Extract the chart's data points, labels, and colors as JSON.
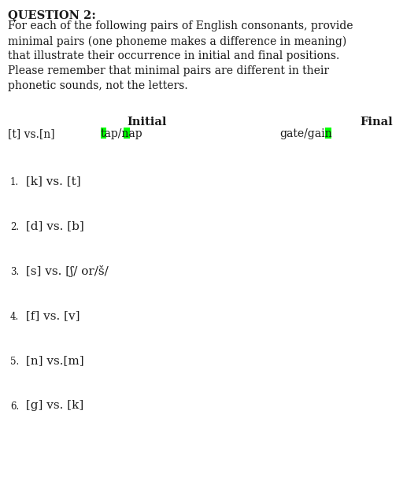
{
  "title": "QUESTION 2:",
  "intro_text": "For each of the following pairs of English consonants, provide\nminimal pairs (one phoneme makes a difference in meaning)\nthat illustrate their occurrence in initial and final positions.\nPlease remember that minimal pairs are different in their\nphonetic sounds, not the letters.",
  "header_initial": "Initial",
  "header_final": "Final",
  "example_label": "[t] vs.[n]",
  "example_initial": "tap/nap",
  "example_final": "gate/gain",
  "items": [
    {
      "num": "1.",
      "text": " [k] vs. [t]"
    },
    {
      "num": "2.",
      "text": " [d] vs. [b]"
    },
    {
      "num": "3.",
      "text": " [s] vs. [ʃ/ or/š/"
    },
    {
      "num": "4.",
      "text": " [f] vs. [v]"
    },
    {
      "num": "5.",
      "text": " [n] vs.[m]"
    },
    {
      "num": "6.",
      "text": " [g] vs. [k]"
    }
  ],
  "bg_color": "#ffffff",
  "text_color": "#1a1a1a",
  "highlight_color": "#00ff00",
  "title_fontsize": 10.5,
  "body_fontsize": 10,
  "item_num_fontsize": 8.5,
  "item_text_fontsize": 11,
  "header_fontsize": 10.5,
  "example_label_fontsize": 10,
  "example_word_fontsize": 10
}
